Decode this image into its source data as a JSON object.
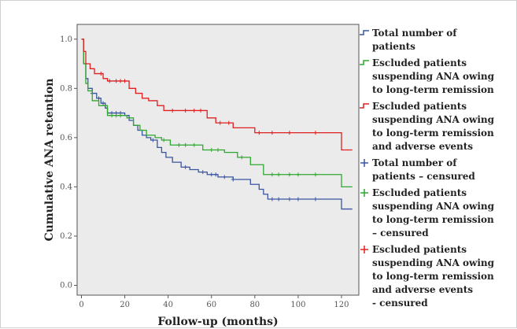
{
  "chart_data": {
    "type": "line",
    "subtype": "kaplan-meier step",
    "title": "",
    "xlabel": "Follow-up (months)",
    "ylabel": "Cumulative ANA retention",
    "xlim": [
      -2,
      128
    ],
    "ylim": [
      -0.04,
      1.06
    ],
    "x_ticks": [
      0,
      20,
      40,
      60,
      80,
      100,
      120
    ],
    "y_ticks": [
      "0.0",
      "0.2",
      "0.4",
      "0.6",
      "0.8",
      "1.0"
    ],
    "y_tick_values": [
      0.0,
      0.2,
      0.4,
      0.6,
      0.8,
      1.0
    ],
    "grid": false,
    "legend_position": "right",
    "plot_background": "#ebebeb",
    "series": [
      {
        "name": "Total number of patients",
        "color": "#3a55a0",
        "steps": [
          [
            0,
            1.0
          ],
          [
            1,
            0.9
          ],
          [
            2,
            0.84
          ],
          [
            3,
            0.8
          ],
          [
            5,
            0.78
          ],
          [
            7,
            0.76
          ],
          [
            9,
            0.74
          ],
          [
            11,
            0.72
          ],
          [
            12,
            0.7
          ],
          [
            20,
            0.69
          ],
          [
            22,
            0.67
          ],
          [
            24,
            0.65
          ],
          [
            26,
            0.63
          ],
          [
            28,
            0.61
          ],
          [
            30,
            0.6
          ],
          [
            32,
            0.59
          ],
          [
            35,
            0.56
          ],
          [
            37,
            0.54
          ],
          [
            39,
            0.52
          ],
          [
            42,
            0.5
          ],
          [
            46,
            0.48
          ],
          [
            50,
            0.47
          ],
          [
            54,
            0.46
          ],
          [
            58,
            0.45
          ],
          [
            63,
            0.44
          ],
          [
            70,
            0.43
          ],
          [
            78,
            0.41
          ],
          [
            82,
            0.39
          ],
          [
            84,
            0.37
          ],
          [
            86,
            0.35
          ],
          [
            120,
            0.31
          ],
          [
            125,
            0.31
          ]
        ],
        "censored": [
          [
            5,
            0.78
          ],
          [
            8,
            0.76
          ],
          [
            10,
            0.74
          ],
          [
            14,
            0.7
          ],
          [
            16,
            0.7
          ],
          [
            18,
            0.7
          ],
          [
            33,
            0.59
          ],
          [
            48,
            0.48
          ],
          [
            56,
            0.46
          ],
          [
            60,
            0.45
          ],
          [
            62,
            0.45
          ],
          [
            66,
            0.44
          ],
          [
            70,
            0.43
          ],
          [
            88,
            0.35
          ],
          [
            91,
            0.35
          ],
          [
            96,
            0.35
          ],
          [
            100,
            0.35
          ],
          [
            108,
            0.35
          ]
        ]
      },
      {
        "name": "Escluded patients suspending ANA owing to long-term remission",
        "color": "#2ea82e",
        "steps": [
          [
            0,
            1.0
          ],
          [
            1,
            0.9
          ],
          [
            2,
            0.82
          ],
          [
            3,
            0.79
          ],
          [
            5,
            0.75
          ],
          [
            8,
            0.73
          ],
          [
            12,
            0.69
          ],
          [
            21,
            0.68
          ],
          [
            24,
            0.65
          ],
          [
            27,
            0.63
          ],
          [
            30,
            0.61
          ],
          [
            34,
            0.6
          ],
          [
            37,
            0.59
          ],
          [
            41,
            0.57
          ],
          [
            56,
            0.55
          ],
          [
            66,
            0.54
          ],
          [
            72,
            0.52
          ],
          [
            78,
            0.49
          ],
          [
            84,
            0.45
          ],
          [
            120,
            0.4
          ],
          [
            125,
            0.4
          ]
        ],
        "censored": [
          [
            14,
            0.69
          ],
          [
            16,
            0.69
          ],
          [
            18,
            0.69
          ],
          [
            38,
            0.59
          ],
          [
            45,
            0.57
          ],
          [
            48,
            0.57
          ],
          [
            52,
            0.57
          ],
          [
            60,
            0.55
          ],
          [
            63,
            0.55
          ],
          [
            74,
            0.52
          ],
          [
            88,
            0.45
          ],
          [
            91,
            0.45
          ],
          [
            96,
            0.45
          ],
          [
            100,
            0.45
          ],
          [
            108,
            0.45
          ]
        ]
      },
      {
        "name": "Escluded patients suspending ANA owing to long-term remission and adverse events",
        "color": "#e02020",
        "steps": [
          [
            0,
            1.0
          ],
          [
            1,
            0.95
          ],
          [
            2,
            0.9
          ],
          [
            4,
            0.88
          ],
          [
            6,
            0.86
          ],
          [
            10,
            0.84
          ],
          [
            12,
            0.83
          ],
          [
            22,
            0.8
          ],
          [
            25,
            0.78
          ],
          [
            28,
            0.76
          ],
          [
            31,
            0.75
          ],
          [
            35,
            0.73
          ],
          [
            38,
            0.71
          ],
          [
            58,
            0.68
          ],
          [
            62,
            0.66
          ],
          [
            70,
            0.64
          ],
          [
            80,
            0.62
          ],
          [
            120,
            0.55
          ],
          [
            125,
            0.55
          ]
        ],
        "censored": [
          [
            9,
            0.86
          ],
          [
            13,
            0.83
          ],
          [
            16,
            0.83
          ],
          [
            18,
            0.83
          ],
          [
            20,
            0.83
          ],
          [
            42,
            0.71
          ],
          [
            48,
            0.71
          ],
          [
            52,
            0.71
          ],
          [
            55,
            0.71
          ],
          [
            64,
            0.66
          ],
          [
            68,
            0.66
          ],
          [
            82,
            0.62
          ],
          [
            88,
            0.62
          ],
          [
            96,
            0.62
          ],
          [
            108,
            0.62
          ]
        ]
      }
    ],
    "legend_entries": [
      {
        "lines": [
          "Total number of",
          "patients"
        ],
        "color": "#3a55a0",
        "marker": "step"
      },
      {
        "lines": [
          "Escluded patients",
          "suspending ANA owing",
          "to long-term remission"
        ],
        "color": "#2ea82e",
        "marker": "step"
      },
      {
        "lines": [
          "Escluded patients",
          "suspending ANA owing",
          "to long-term remission",
          "and adverse events"
        ],
        "color": "#e02020",
        "marker": "step"
      },
      {
        "lines": [
          "Total number of",
          "patients – censured"
        ],
        "color": "#3a55a0",
        "marker": "plus"
      },
      {
        "lines": [
          "Escluded patients",
          "suspending ANA owing",
          "to long-term remission",
          "– censured"
        ],
        "color": "#2ea82e",
        "marker": "plus"
      },
      {
        "lines": [
          "Escluded patients",
          "suspending ANA owing",
          "to long-term remission",
          "and adverse events",
          "- censured"
        ],
        "color": "#e02020",
        "marker": "plus"
      }
    ]
  }
}
